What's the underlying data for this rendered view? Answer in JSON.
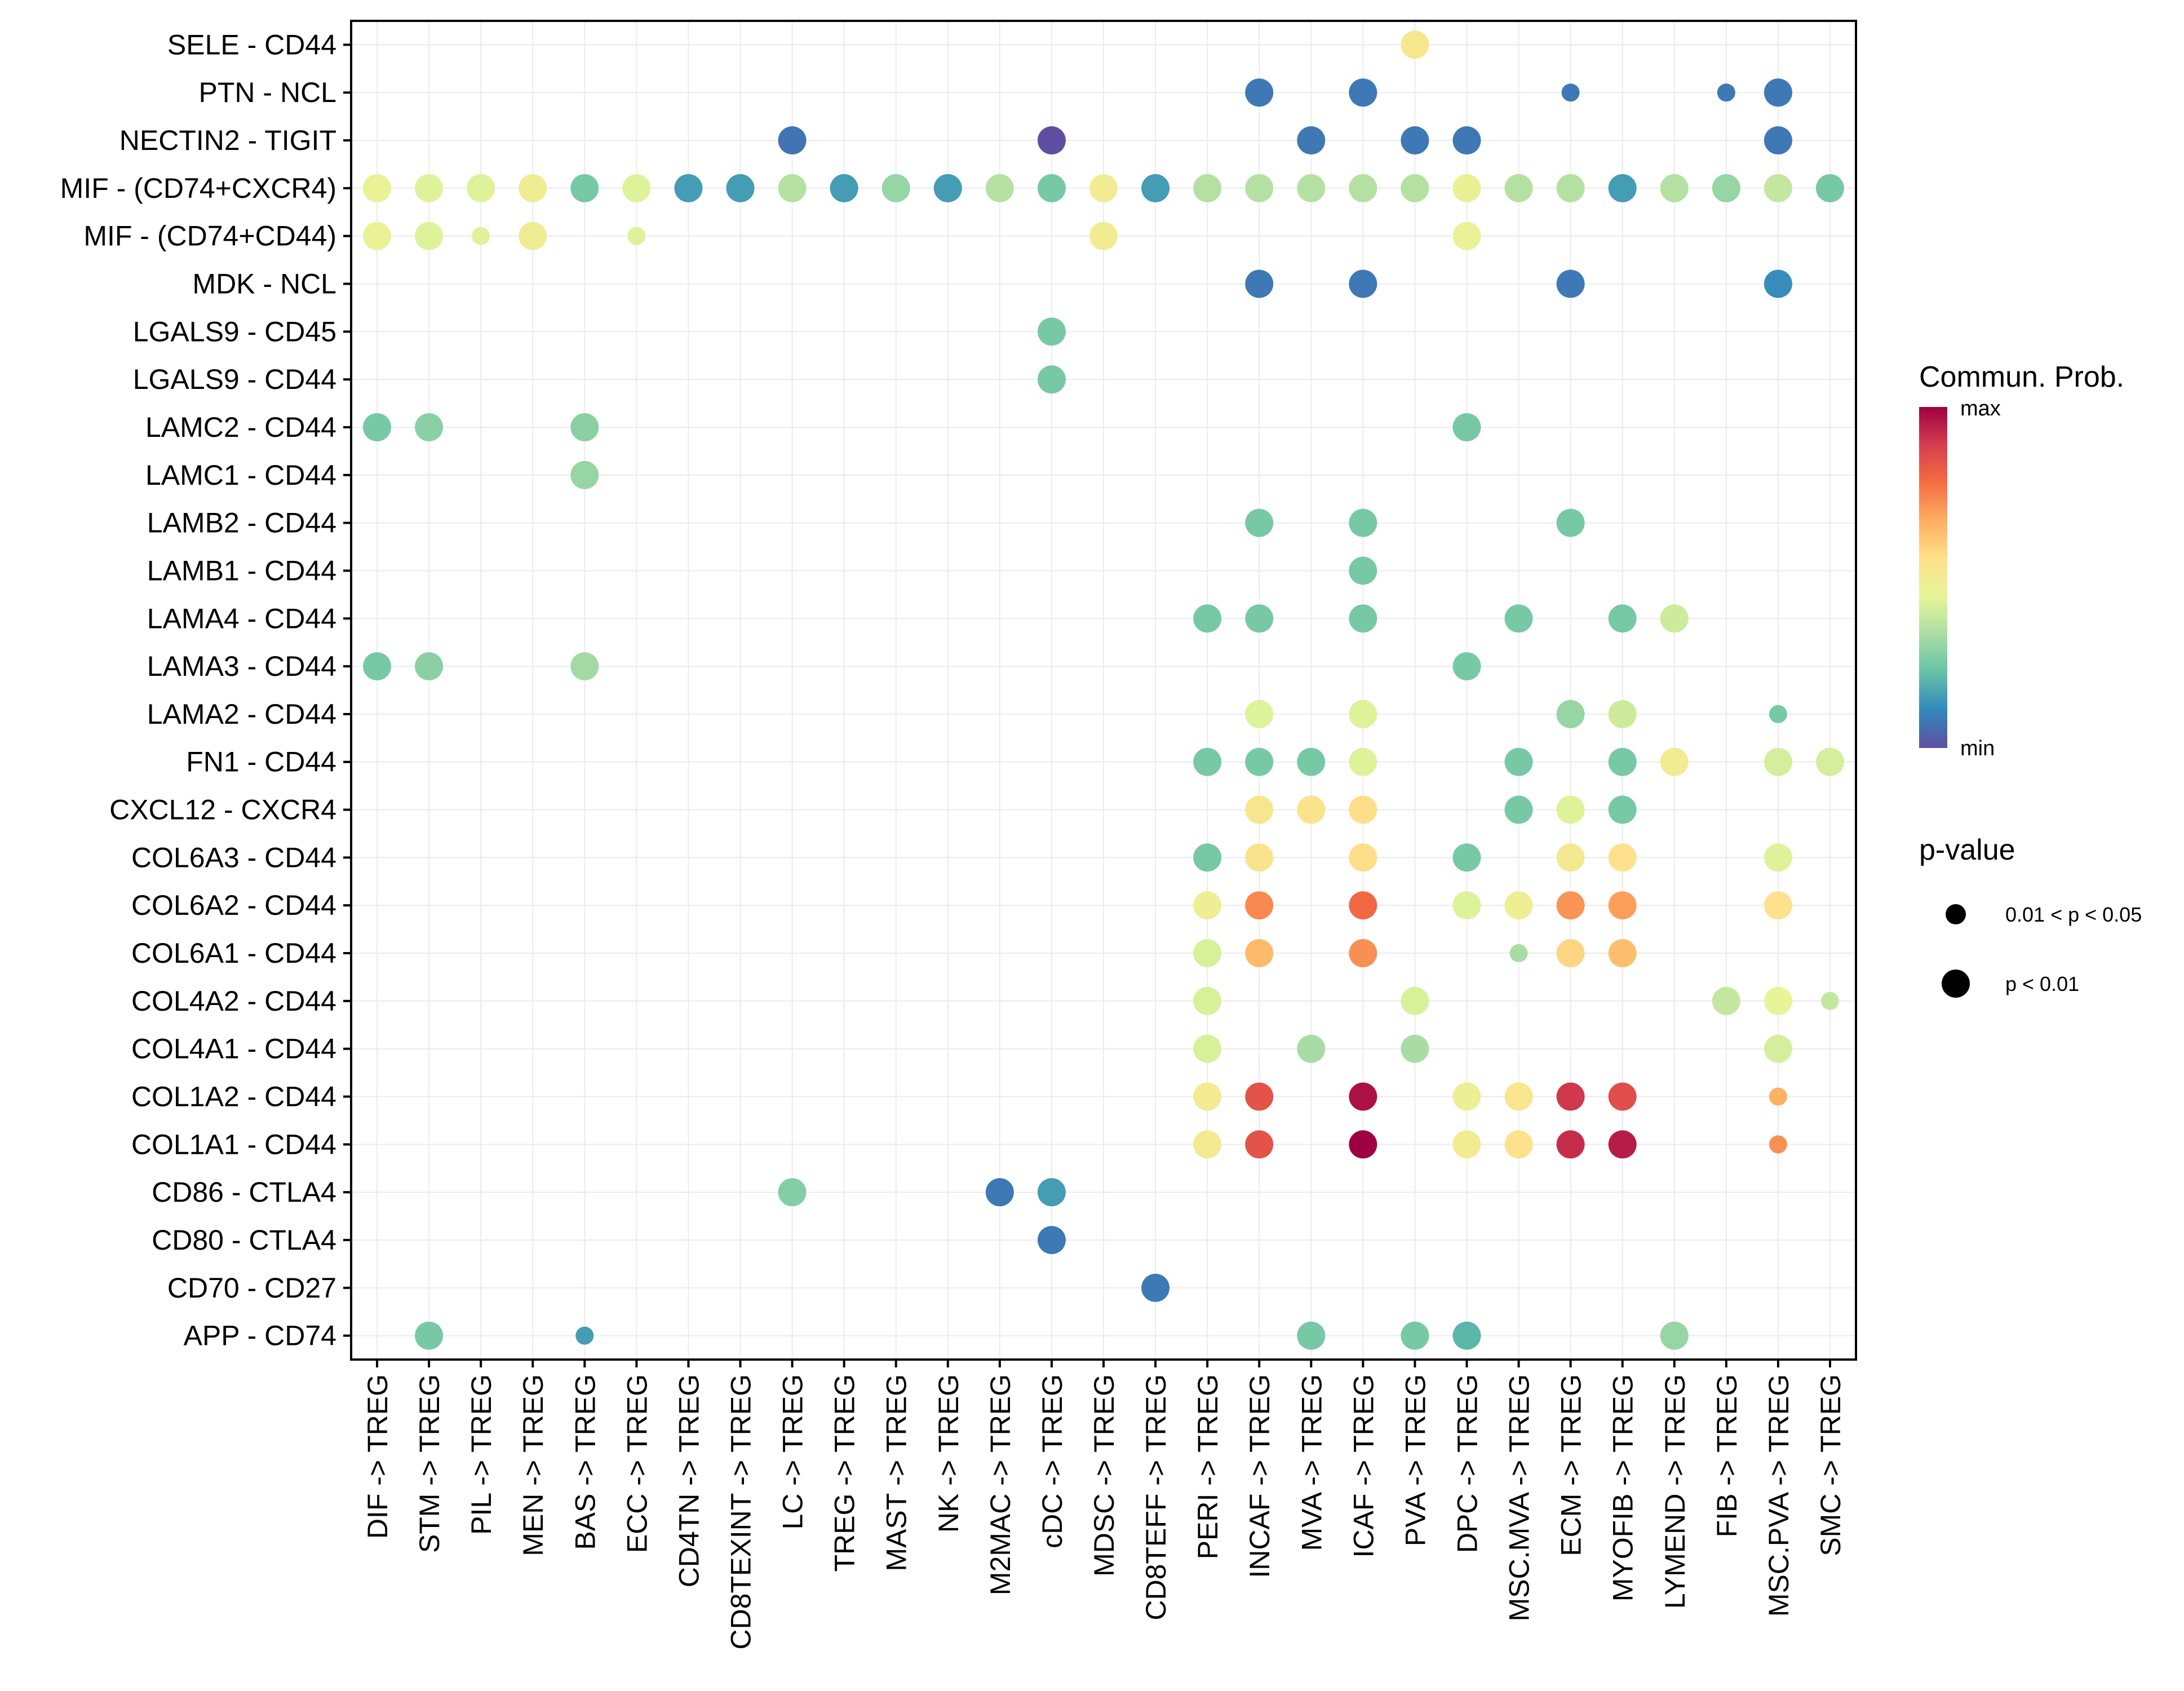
{
  "chart_data": {
    "type": "scatter",
    "subtype": "dot-plot",
    "title": "",
    "xlabel": "",
    "ylabel": "",
    "grid": true,
    "x_categories": [
      "DIF -> TREG",
      "STM -> TREG",
      "PIL -> TREG",
      "MEN -> TREG",
      "BAS -> TREG",
      "ECC -> TREG",
      "CD4TN -> TREG",
      "CD8TEXINT -> TREG",
      "LC -> TREG",
      "TREG -> TREG",
      "MAST -> TREG",
      "NK -> TREG",
      "M2MAC -> TREG",
      "cDC -> TREG",
      "MDSC -> TREG",
      "CD8TEFF -> TREG",
      "PERI -> TREG",
      "INCAF -> TREG",
      "MVA -> TREG",
      "ICAF -> TREG",
      "PVA -> TREG",
      "DPC -> TREG",
      "MSC.MVA -> TREG",
      "ECM -> TREG",
      "MYOFIB -> TREG",
      "LYMEND -> TREG",
      "FIB -> TREG",
      "MSC.PVA -> TREG",
      "SMC -> TREG"
    ],
    "y_categories": [
      "SELE - CD44",
      "PTN - NCL",
      "NECTIN2 - TIGIT",
      "MIF - (CD74+CXCR4)",
      "MIF - (CD74+CD44)",
      "MDK - NCL",
      "LGALS9 - CD45",
      "LGALS9 - CD44",
      "LAMC2 - CD44",
      "LAMC1 - CD44",
      "LAMB2 - CD44",
      "LAMB1 - CD44",
      "LAMA4 - CD44",
      "LAMA3 - CD44",
      "LAMA2 - CD44",
      "FN1 - CD44",
      "CXCL12 - CXCR4",
      "COL6A3 - CD44",
      "COL6A2 - CD44",
      "COL6A1 - CD44",
      "COL4A2 - CD44",
      "COL4A1 - CD44",
      "COL1A2 - CD44",
      "COL1A1 - CD44",
      "CD86 - CTLA4",
      "CD80 - CTLA4",
      "CD70 - CD27",
      "APP - CD74"
    ],
    "color_legend": {
      "title": "Commun. Prob.",
      "min_label": "min",
      "max_label": "max",
      "palette": [
        "#5E4FA2",
        "#3288BD",
        "#66C2A5",
        "#ABDDA4",
        "#E6F598",
        "#FEE08B",
        "#FDAE61",
        "#F46D43",
        "#D53E4F",
        "#9E0142"
      ]
    },
    "size_legend": {
      "title": "p-value",
      "entries": [
        {
          "label": "0.01 < p < 0.05",
          "class": "p05"
        },
        {
          "label": "p < 0.01",
          "class": "p01"
        }
      ]
    },
    "points": [
      {
        "y": "SELE - CD44",
        "x": "PVA -> TREG",
        "prob": 0.52,
        "p": "p01"
      },
      {
        "y": "PTN - NCL",
        "x": "INCAF -> TREG",
        "prob": 0.08,
        "p": "p01"
      },
      {
        "y": "PTN - NCL",
        "x": "ICAF -> TREG",
        "prob": 0.08,
        "p": "p01"
      },
      {
        "y": "PTN - NCL",
        "x": "ECM -> TREG",
        "prob": 0.08,
        "p": "p05"
      },
      {
        "y": "PTN - NCL",
        "x": "FIB -> TREG",
        "prob": 0.08,
        "p": "p05"
      },
      {
        "y": "PTN - NCL",
        "x": "MSC.PVA -> TREG",
        "prob": 0.08,
        "p": "p01"
      },
      {
        "y": "NECTIN2 - TIGIT",
        "x": "LC -> TREG",
        "prob": 0.07,
        "p": "p01"
      },
      {
        "y": "NECTIN2 - TIGIT",
        "x": "cDC -> TREG",
        "prob": 0.0,
        "p": "p01"
      },
      {
        "y": "NECTIN2 - TIGIT",
        "x": "MVA -> TREG",
        "prob": 0.08,
        "p": "p01"
      },
      {
        "y": "NECTIN2 - TIGIT",
        "x": "PVA -> TREG",
        "prob": 0.08,
        "p": "p01"
      },
      {
        "y": "NECTIN2 - TIGIT",
        "x": "DPC -> TREG",
        "prob": 0.08,
        "p": "p01"
      },
      {
        "y": "NECTIN2 - TIGIT",
        "x": "MSC.PVA -> TREG",
        "prob": 0.08,
        "p": "p01"
      },
      {
        "y": "MIF - (CD74+CXCR4)",
        "x": "DIF -> TREG",
        "prob": 0.46,
        "p": "p01"
      },
      {
        "y": "MIF - (CD74+CXCR4)",
        "x": "STM -> TREG",
        "prob": 0.43,
        "p": "p01"
      },
      {
        "y": "MIF - (CD74+CXCR4)",
        "x": "PIL -> TREG",
        "prob": 0.43,
        "p": "p01"
      },
      {
        "y": "MIF - (CD74+CXCR4)",
        "x": "MEN -> TREG",
        "prob": 0.49,
        "p": "p01"
      },
      {
        "y": "MIF - (CD74+CXCR4)",
        "x": "BAS -> TREG",
        "prob": 0.25,
        "p": "p01"
      },
      {
        "y": "MIF - (CD74+CXCR4)",
        "x": "ECC -> TREG",
        "prob": 0.43,
        "p": "p01"
      },
      {
        "y": "MIF - (CD74+CXCR4)",
        "x": "CD4TN -> TREG",
        "prob": 0.15,
        "p": "p01"
      },
      {
        "y": "MIF - (CD74+CXCR4)",
        "x": "CD8TEXINT -> TREG",
        "prob": 0.15,
        "p": "p01"
      },
      {
        "y": "MIF - (CD74+CXCR4)",
        "x": "LC -> TREG",
        "prob": 0.35,
        "p": "p01"
      },
      {
        "y": "MIF - (CD74+CXCR4)",
        "x": "TREG -> TREG",
        "prob": 0.15,
        "p": "p01"
      },
      {
        "y": "MIF - (CD74+CXCR4)",
        "x": "MAST -> TREG",
        "prob": 0.3,
        "p": "p01"
      },
      {
        "y": "MIF - (CD74+CXCR4)",
        "x": "NK -> TREG",
        "prob": 0.15,
        "p": "p01"
      },
      {
        "y": "MIF - (CD74+CXCR4)",
        "x": "M2MAC -> TREG",
        "prob": 0.35,
        "p": "p01"
      },
      {
        "y": "MIF - (CD74+CXCR4)",
        "x": "cDC -> TREG",
        "prob": 0.25,
        "p": "p01"
      },
      {
        "y": "MIF - (CD74+CXCR4)",
        "x": "MDSC -> TREG",
        "prob": 0.5,
        "p": "p01"
      },
      {
        "y": "MIF - (CD74+CXCR4)",
        "x": "CD8TEFF -> TREG",
        "prob": 0.15,
        "p": "p01"
      },
      {
        "y": "MIF - (CD74+CXCR4)",
        "x": "PERI -> TREG",
        "prob": 0.35,
        "p": "p01"
      },
      {
        "y": "MIF - (CD74+CXCR4)",
        "x": "INCAF -> TREG",
        "prob": 0.35,
        "p": "p01"
      },
      {
        "y": "MIF - (CD74+CXCR4)",
        "x": "MVA -> TREG",
        "prob": 0.35,
        "p": "p01"
      },
      {
        "y": "MIF - (CD74+CXCR4)",
        "x": "ICAF -> TREG",
        "prob": 0.35,
        "p": "p01"
      },
      {
        "y": "MIF - (CD74+CXCR4)",
        "x": "PVA -> TREG",
        "prob": 0.35,
        "p": "p01"
      },
      {
        "y": "MIF - (CD74+CXCR4)",
        "x": "DPC -> TREG",
        "prob": 0.47,
        "p": "p01"
      },
      {
        "y": "MIF - (CD74+CXCR4)",
        "x": "MSC.MVA -> TREG",
        "prob": 0.35,
        "p": "p01"
      },
      {
        "y": "MIF - (CD74+CXCR4)",
        "x": "ECM -> TREG",
        "prob": 0.35,
        "p": "p01"
      },
      {
        "y": "MIF - (CD74+CXCR4)",
        "x": "MYOFIB -> TREG",
        "prob": 0.15,
        "p": "p01"
      },
      {
        "y": "MIF - (CD74+CXCR4)",
        "x": "LYMEND -> TREG",
        "prob": 0.35,
        "p": "p01"
      },
      {
        "y": "MIF - (CD74+CXCR4)",
        "x": "FIB -> TREG",
        "prob": 0.3,
        "p": "p01"
      },
      {
        "y": "MIF - (CD74+CXCR4)",
        "x": "MSC.PVA -> TREG",
        "prob": 0.38,
        "p": "p01"
      },
      {
        "y": "MIF - (CD74+CXCR4)",
        "x": "SMC -> TREG",
        "prob": 0.25,
        "p": "p01"
      },
      {
        "y": "MIF - (CD74+CD44)",
        "x": "DIF -> TREG",
        "prob": 0.46,
        "p": "p01"
      },
      {
        "y": "MIF - (CD74+CD44)",
        "x": "STM -> TREG",
        "prob": 0.43,
        "p": "p01"
      },
      {
        "y": "MIF - (CD74+CD44)",
        "x": "PIL -> TREG",
        "prob": 0.43,
        "p": "p05"
      },
      {
        "y": "MIF - (CD74+CD44)",
        "x": "MEN -> TREG",
        "prob": 0.49,
        "p": "p01"
      },
      {
        "y": "MIF - (CD74+CD44)",
        "x": "ECC -> TREG",
        "prob": 0.43,
        "p": "p05"
      },
      {
        "y": "MIF - (CD74+CD44)",
        "x": "MDSC -> TREG",
        "prob": 0.5,
        "p": "p01"
      },
      {
        "y": "MIF - (CD74+CD44)",
        "x": "DPC -> TREG",
        "prob": 0.46,
        "p": "p01"
      },
      {
        "y": "MDK - NCL",
        "x": "INCAF -> TREG",
        "prob": 0.08,
        "p": "p01"
      },
      {
        "y": "MDK - NCL",
        "x": "ICAF -> TREG",
        "prob": 0.08,
        "p": "p01"
      },
      {
        "y": "MDK - NCL",
        "x": "ECM -> TREG",
        "prob": 0.08,
        "p": "p01"
      },
      {
        "y": "MDK - NCL",
        "x": "MSC.PVA -> TREG",
        "prob": 0.12,
        "p": "p01"
      },
      {
        "y": "LGALS9 - CD45",
        "x": "cDC -> TREG",
        "prob": 0.25,
        "p": "p01"
      },
      {
        "y": "LGALS9 - CD44",
        "x": "cDC -> TREG",
        "prob": 0.25,
        "p": "p01"
      },
      {
        "y": "LAMC2 - CD44",
        "x": "DIF -> TREG",
        "prob": 0.25,
        "p": "p01"
      },
      {
        "y": "LAMC2 - CD44",
        "x": "STM -> TREG",
        "prob": 0.28,
        "p": "p01"
      },
      {
        "y": "LAMC2 - CD44",
        "x": "BAS -> TREG",
        "prob": 0.28,
        "p": "p01"
      },
      {
        "y": "LAMC2 - CD44",
        "x": "DPC -> TREG",
        "prob": 0.25,
        "p": "p01"
      },
      {
        "y": "LAMC1 - CD44",
        "x": "BAS -> TREG",
        "prob": 0.3,
        "p": "p01"
      },
      {
        "y": "LAMB2 - CD44",
        "x": "INCAF -> TREG",
        "prob": 0.25,
        "p": "p01"
      },
      {
        "y": "LAMB2 - CD44",
        "x": "ICAF -> TREG",
        "prob": 0.25,
        "p": "p01"
      },
      {
        "y": "LAMB2 - CD44",
        "x": "ECM -> TREG",
        "prob": 0.25,
        "p": "p01"
      },
      {
        "y": "LAMB1 - CD44",
        "x": "ICAF -> TREG",
        "prob": 0.25,
        "p": "p01"
      },
      {
        "y": "LAMA4 - CD44",
        "x": "PERI -> TREG",
        "prob": 0.25,
        "p": "p01"
      },
      {
        "y": "LAMA4 - CD44",
        "x": "INCAF -> TREG",
        "prob": 0.25,
        "p": "p01"
      },
      {
        "y": "LAMA4 - CD44",
        "x": "ICAF -> TREG",
        "prob": 0.25,
        "p": "p01"
      },
      {
        "y": "LAMA4 - CD44",
        "x": "MSC.MVA -> TREG",
        "prob": 0.25,
        "p": "p01"
      },
      {
        "y": "LAMA4 - CD44",
        "x": "MYOFIB -> TREG",
        "prob": 0.25,
        "p": "p01"
      },
      {
        "y": "LAMA4 - CD44",
        "x": "LYMEND -> TREG",
        "prob": 0.4,
        "p": "p01"
      },
      {
        "y": "LAMA3 - CD44",
        "x": "DIF -> TREG",
        "prob": 0.25,
        "p": "p01"
      },
      {
        "y": "LAMA3 - CD44",
        "x": "STM -> TREG",
        "prob": 0.28,
        "p": "p01"
      },
      {
        "y": "LAMA3 - CD44",
        "x": "BAS -> TREG",
        "prob": 0.32,
        "p": "p01"
      },
      {
        "y": "LAMA3 - CD44",
        "x": "DPC -> TREG",
        "prob": 0.25,
        "p": "p01"
      },
      {
        "y": "LAMA2 - CD44",
        "x": "INCAF -> TREG",
        "prob": 0.43,
        "p": "p01"
      },
      {
        "y": "LAMA2 - CD44",
        "x": "ICAF -> TREG",
        "prob": 0.43,
        "p": "p01"
      },
      {
        "y": "LAMA2 - CD44",
        "x": "ECM -> TREG",
        "prob": 0.3,
        "p": "p01"
      },
      {
        "y": "LAMA2 - CD44",
        "x": "MYOFIB -> TREG",
        "prob": 0.4,
        "p": "p01"
      },
      {
        "y": "LAMA2 - CD44",
        "x": "MSC.PVA -> TREG",
        "prob": 0.25,
        "p": "p05"
      },
      {
        "y": "FN1 - CD44",
        "x": "PERI -> TREG",
        "prob": 0.25,
        "p": "p01"
      },
      {
        "y": "FN1 - CD44",
        "x": "INCAF -> TREG",
        "prob": 0.25,
        "p": "p01"
      },
      {
        "y": "FN1 - CD44",
        "x": "MVA -> TREG",
        "prob": 0.25,
        "p": "p01"
      },
      {
        "y": "FN1 - CD44",
        "x": "ICAF -> TREG",
        "prob": 0.43,
        "p": "p01"
      },
      {
        "y": "FN1 - CD44",
        "x": "MSC.MVA -> TREG",
        "prob": 0.25,
        "p": "p01"
      },
      {
        "y": "FN1 - CD44",
        "x": "MYOFIB -> TREG",
        "prob": 0.25,
        "p": "p01"
      },
      {
        "y": "FN1 - CD44",
        "x": "LYMEND -> TREG",
        "prob": 0.5,
        "p": "p01"
      },
      {
        "y": "FN1 - CD44",
        "x": "MSC.PVA -> TREG",
        "prob": 0.41,
        "p": "p01"
      },
      {
        "y": "FN1 - CD44",
        "x": "SMC -> TREG",
        "prob": 0.41,
        "p": "p01"
      },
      {
        "y": "CXCL12 - CXCR4",
        "x": "INCAF -> TREG",
        "prob": 0.53,
        "p": "p01"
      },
      {
        "y": "CXCL12 - CXCR4",
        "x": "MVA -> TREG",
        "prob": 0.54,
        "p": "p01"
      },
      {
        "y": "CXCL12 - CXCR4",
        "x": "ICAF -> TREG",
        "prob": 0.56,
        "p": "p01"
      },
      {
        "y": "CXCL12 - CXCR4",
        "x": "MSC.MVA -> TREG",
        "prob": 0.25,
        "p": "p01"
      },
      {
        "y": "CXCL12 - CXCR4",
        "x": "ECM -> TREG",
        "prob": 0.43,
        "p": "p01"
      },
      {
        "y": "CXCL12 - CXCR4",
        "x": "MYOFIB -> TREG",
        "prob": 0.25,
        "p": "p01"
      },
      {
        "y": "COL6A3 - CD44",
        "x": "PERI -> TREG",
        "prob": 0.25,
        "p": "p01"
      },
      {
        "y": "COL6A3 - CD44",
        "x": "INCAF -> TREG",
        "prob": 0.54,
        "p": "p01"
      },
      {
        "y": "COL6A3 - CD44",
        "x": "ICAF -> TREG",
        "prob": 0.56,
        "p": "p01"
      },
      {
        "y": "COL6A3 - CD44",
        "x": "DPC -> TREG",
        "prob": 0.25,
        "p": "p01"
      },
      {
        "y": "COL6A3 - CD44",
        "x": "ECM -> TREG",
        "prob": 0.51,
        "p": "p01"
      },
      {
        "y": "COL6A3 - CD44",
        "x": "MYOFIB -> TREG",
        "prob": 0.55,
        "p": "p01"
      },
      {
        "y": "COL6A3 - CD44",
        "x": "MSC.PVA -> TREG",
        "prob": 0.43,
        "p": "p01"
      },
      {
        "y": "COL6A2 - CD44",
        "x": "PERI -> TREG",
        "prob": 0.48,
        "p": "p01"
      },
      {
        "y": "COL6A2 - CD44",
        "x": "INCAF -> TREG",
        "prob": 0.73,
        "p": "p01"
      },
      {
        "y": "COL6A2 - CD44",
        "x": "ICAF -> TREG",
        "prob": 0.79,
        "p": "p01"
      },
      {
        "y": "COL6A2 - CD44",
        "x": "DPC -> TREG",
        "prob": 0.43,
        "p": "p01"
      },
      {
        "y": "COL6A2 - CD44",
        "x": "MSC.MVA -> TREG",
        "prob": 0.48,
        "p": "p01"
      },
      {
        "y": "COL6A2 - CD44",
        "x": "ECM -> TREG",
        "prob": 0.71,
        "p": "p01"
      },
      {
        "y": "COL6A2 - CD44",
        "x": "MYOFIB -> TREG",
        "prob": 0.69,
        "p": "p01"
      },
      {
        "y": "COL6A2 - CD44",
        "x": "MSC.PVA -> TREG",
        "prob": 0.55,
        "p": "p01"
      },
      {
        "y": "COL6A1 - CD44",
        "x": "PERI -> TREG",
        "prob": 0.42,
        "p": "p01"
      },
      {
        "y": "COL6A1 - CD44",
        "x": "INCAF -> TREG",
        "prob": 0.64,
        "p": "p01"
      },
      {
        "y": "COL6A1 - CD44",
        "x": "ICAF -> TREG",
        "prob": 0.72,
        "p": "p01"
      },
      {
        "y": "COL6A1 - CD44",
        "x": "MSC.MVA -> TREG",
        "prob": 0.33,
        "p": "p05"
      },
      {
        "y": "COL6A1 - CD44",
        "x": "ECM -> TREG",
        "prob": 0.58,
        "p": "p01"
      },
      {
        "y": "COL6A1 - CD44",
        "x": "MYOFIB -> TREG",
        "prob": 0.63,
        "p": "p01"
      },
      {
        "y": "COL4A2 - CD44",
        "x": "PERI -> TREG",
        "prob": 0.42,
        "p": "p01"
      },
      {
        "y": "COL4A2 - CD44",
        "x": "PVA -> TREG",
        "prob": 0.42,
        "p": "p01"
      },
      {
        "y": "COL4A2 - CD44",
        "x": "FIB -> TREG",
        "prob": 0.38,
        "p": "p01"
      },
      {
        "y": "COL4A2 - CD44",
        "x": "MSC.PVA -> TREG",
        "prob": 0.45,
        "p": "p01"
      },
      {
        "y": "COL4A2 - CD44",
        "x": "SMC -> TREG",
        "prob": 0.38,
        "p": "p05"
      },
      {
        "y": "COL4A1 - CD44",
        "x": "PERI -> TREG",
        "prob": 0.42,
        "p": "p01"
      },
      {
        "y": "COL4A1 - CD44",
        "x": "MVA -> TREG",
        "prob": 0.33,
        "p": "p01"
      },
      {
        "y": "COL4A1 - CD44",
        "x": "PVA -> TREG",
        "prob": 0.33,
        "p": "p01"
      },
      {
        "y": "COL4A1 - CD44",
        "x": "MSC.PVA -> TREG",
        "prob": 0.41,
        "p": "p01"
      },
      {
        "y": "COL1A2 - CD44",
        "x": "PERI -> TREG",
        "prob": 0.5,
        "p": "p01"
      },
      {
        "y": "COL1A2 - CD44",
        "x": "INCAF -> TREG",
        "prob": 0.84,
        "p": "p01"
      },
      {
        "y": "COL1A2 - CD44",
        "x": "ICAF -> TREG",
        "prob": 0.97,
        "p": "p01"
      },
      {
        "y": "COL1A2 - CD44",
        "x": "DPC -> TREG",
        "prob": 0.48,
        "p": "p01"
      },
      {
        "y": "COL1A2 - CD44",
        "x": "MSC.MVA -> TREG",
        "prob": 0.53,
        "p": "p01"
      },
      {
        "y": "COL1A2 - CD44",
        "x": "ECM -> TREG",
        "prob": 0.9,
        "p": "p01"
      },
      {
        "y": "COL1A2 - CD44",
        "x": "MYOFIB -> TREG",
        "prob": 0.85,
        "p": "p01"
      },
      {
        "y": "COL1A2 - CD44",
        "x": "MSC.PVA -> TREG",
        "prob": 0.66,
        "p": "p05"
      },
      {
        "y": "COL1A1 - CD44",
        "x": "PERI -> TREG",
        "prob": 0.5,
        "p": "p01"
      },
      {
        "y": "COL1A1 - CD44",
        "x": "INCAF -> TREG",
        "prob": 0.84,
        "p": "p01"
      },
      {
        "y": "COL1A1 - CD44",
        "x": "ICAF -> TREG",
        "prob": 1.0,
        "p": "p01"
      },
      {
        "y": "COL1A1 - CD44",
        "x": "DPC -> TREG",
        "prob": 0.5,
        "p": "p01"
      },
      {
        "y": "COL1A1 - CD44",
        "x": "MSC.MVA -> TREG",
        "prob": 0.55,
        "p": "p01"
      },
      {
        "y": "COL1A1 - CD44",
        "x": "ECM -> TREG",
        "prob": 0.92,
        "p": "p01"
      },
      {
        "y": "COL1A1 - CD44",
        "x": "MYOFIB -> TREG",
        "prob": 0.95,
        "p": "p01"
      },
      {
        "y": "COL1A1 - CD44",
        "x": "MSC.PVA -> TREG",
        "prob": 0.72,
        "p": "p05"
      },
      {
        "y": "CD86 - CTLA4",
        "x": "LC -> TREG",
        "prob": 0.27,
        "p": "p01"
      },
      {
        "y": "CD86 - CTLA4",
        "x": "M2MAC -> TREG",
        "prob": 0.08,
        "p": "p01"
      },
      {
        "y": "CD86 - CTLA4",
        "x": "cDC -> TREG",
        "prob": 0.15,
        "p": "p01"
      },
      {
        "y": "CD80 - CTLA4",
        "x": "cDC -> TREG",
        "prob": 0.08,
        "p": "p01"
      },
      {
        "y": "CD70 - CD27",
        "x": "CD8TEFF -> TREG",
        "prob": 0.08,
        "p": "p01"
      },
      {
        "y": "APP - CD74",
        "x": "STM -> TREG",
        "prob": 0.25,
        "p": "p01"
      },
      {
        "y": "APP - CD74",
        "x": "BAS -> TREG",
        "prob": 0.15,
        "p": "p05"
      },
      {
        "y": "APP - CD74",
        "x": "MVA -> TREG",
        "prob": 0.25,
        "p": "p01"
      },
      {
        "y": "APP - CD74",
        "x": "PVA -> TREG",
        "prob": 0.25,
        "p": "p01"
      },
      {
        "y": "APP - CD74",
        "x": "DPC -> TREG",
        "prob": 0.2,
        "p": "p01"
      },
      {
        "y": "APP - CD74",
        "x": "LYMEND -> TREG",
        "prob": 0.3,
        "p": "p01"
      }
    ]
  }
}
